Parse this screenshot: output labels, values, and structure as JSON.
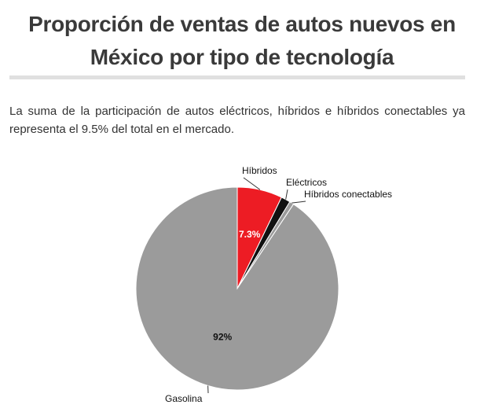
{
  "chart_data": {
    "type": "pie",
    "title": "Proporción de ventas de autos nuevos en México por tipo de tecnología",
    "subtitle": "La suma de la participación de autos eléctricos, híbridos e híbridos conectables ya representa el 9.5% del total en el mercado.",
    "categories": [
      "Híbridos",
      "Eléctricos",
      "Híbridos conectables",
      "Gasolina"
    ],
    "values": [
      7.3,
      1.5,
      0.7,
      92
    ],
    "value_labels": [
      "7.3%",
      null,
      null,
      "92%"
    ],
    "colors": [
      "#ed1c24",
      "#111111",
      "#9b9b9b",
      "#9b9b9b"
    ]
  }
}
